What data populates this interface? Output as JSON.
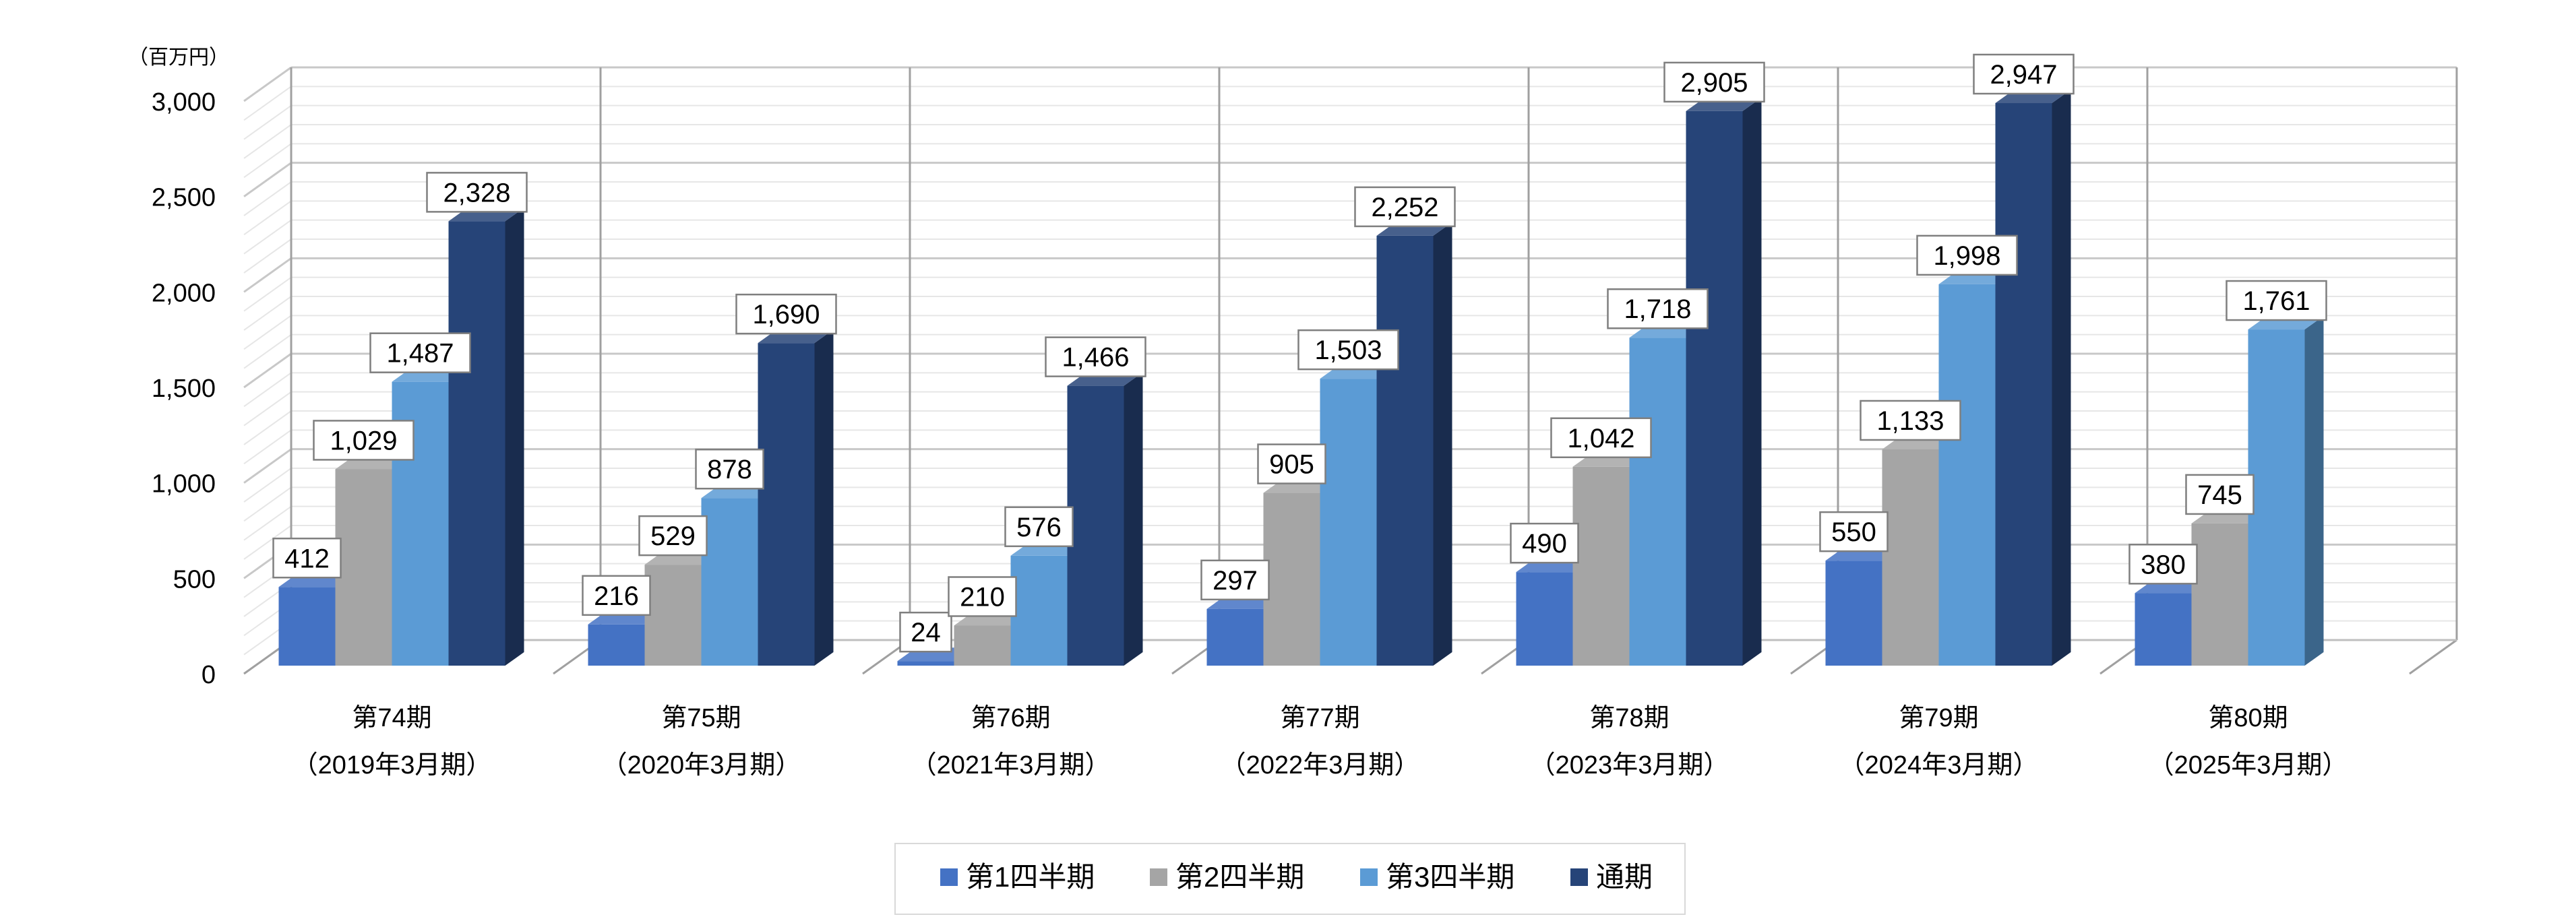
{
  "chart_data": {
    "type": "bar",
    "unit_label": "（百万円）",
    "ylim": [
      0,
      3000
    ],
    "yticks": [
      {
        "value": 0,
        "label": "0"
      },
      {
        "value": 500,
        "label": "500"
      },
      {
        "value": 1000,
        "label": "1,000"
      },
      {
        "value": 1500,
        "label": "1,500"
      },
      {
        "value": 2000,
        "label": "2,000"
      },
      {
        "value": 2500,
        "label": "2,500"
      },
      {
        "value": 3000,
        "label": "3,000"
      }
    ],
    "grid": true,
    "legend_position": "bottom",
    "categories": [
      {
        "line1": "第74期",
        "line2": "（2019年3月期）"
      },
      {
        "line1": "第75期",
        "line2": "（2020年3月期）"
      },
      {
        "line1": "第76期",
        "line2": "（2021年3月期）"
      },
      {
        "line1": "第77期",
        "line2": "（2022年3月期）"
      },
      {
        "line1": "第78期",
        "line2": "（2023年3月期）"
      },
      {
        "line1": "第79期",
        "line2": "（2024年3月期）"
      },
      {
        "line1": "第80期",
        "line2": "（2025年3月期）"
      }
    ],
    "series": [
      {
        "name": "第1四半期",
        "color": "#4472C4",
        "values": [
          412,
          216,
          24,
          297,
          490,
          550,
          380
        ],
        "labels": [
          "412",
          "216",
          "24",
          "297",
          "490",
          "550",
          "380"
        ]
      },
      {
        "name": "第2四半期",
        "color": "#A5A5A5",
        "values": [
          1029,
          529,
          210,
          905,
          1042,
          1133,
          745
        ],
        "labels": [
          "1,029",
          "529",
          "210",
          "905",
          "1,042",
          "1,133",
          "745"
        ]
      },
      {
        "name": "第3四半期",
        "color": "#5B9BD5",
        "values": [
          1487,
          878,
          576,
          1503,
          1718,
          1998,
          1761
        ],
        "labels": [
          "1,487",
          "878",
          "576",
          "1,503",
          "1,718",
          "1,998",
          "1,761"
        ]
      },
      {
        "name": "通期",
        "color": "#264478",
        "values": [
          2328,
          1690,
          1466,
          2252,
          2905,
          2947,
          null
        ],
        "labels": [
          "2,328",
          "1,690",
          "1,466",
          "2,252",
          "2,905",
          "2,947",
          null
        ]
      }
    ]
  }
}
